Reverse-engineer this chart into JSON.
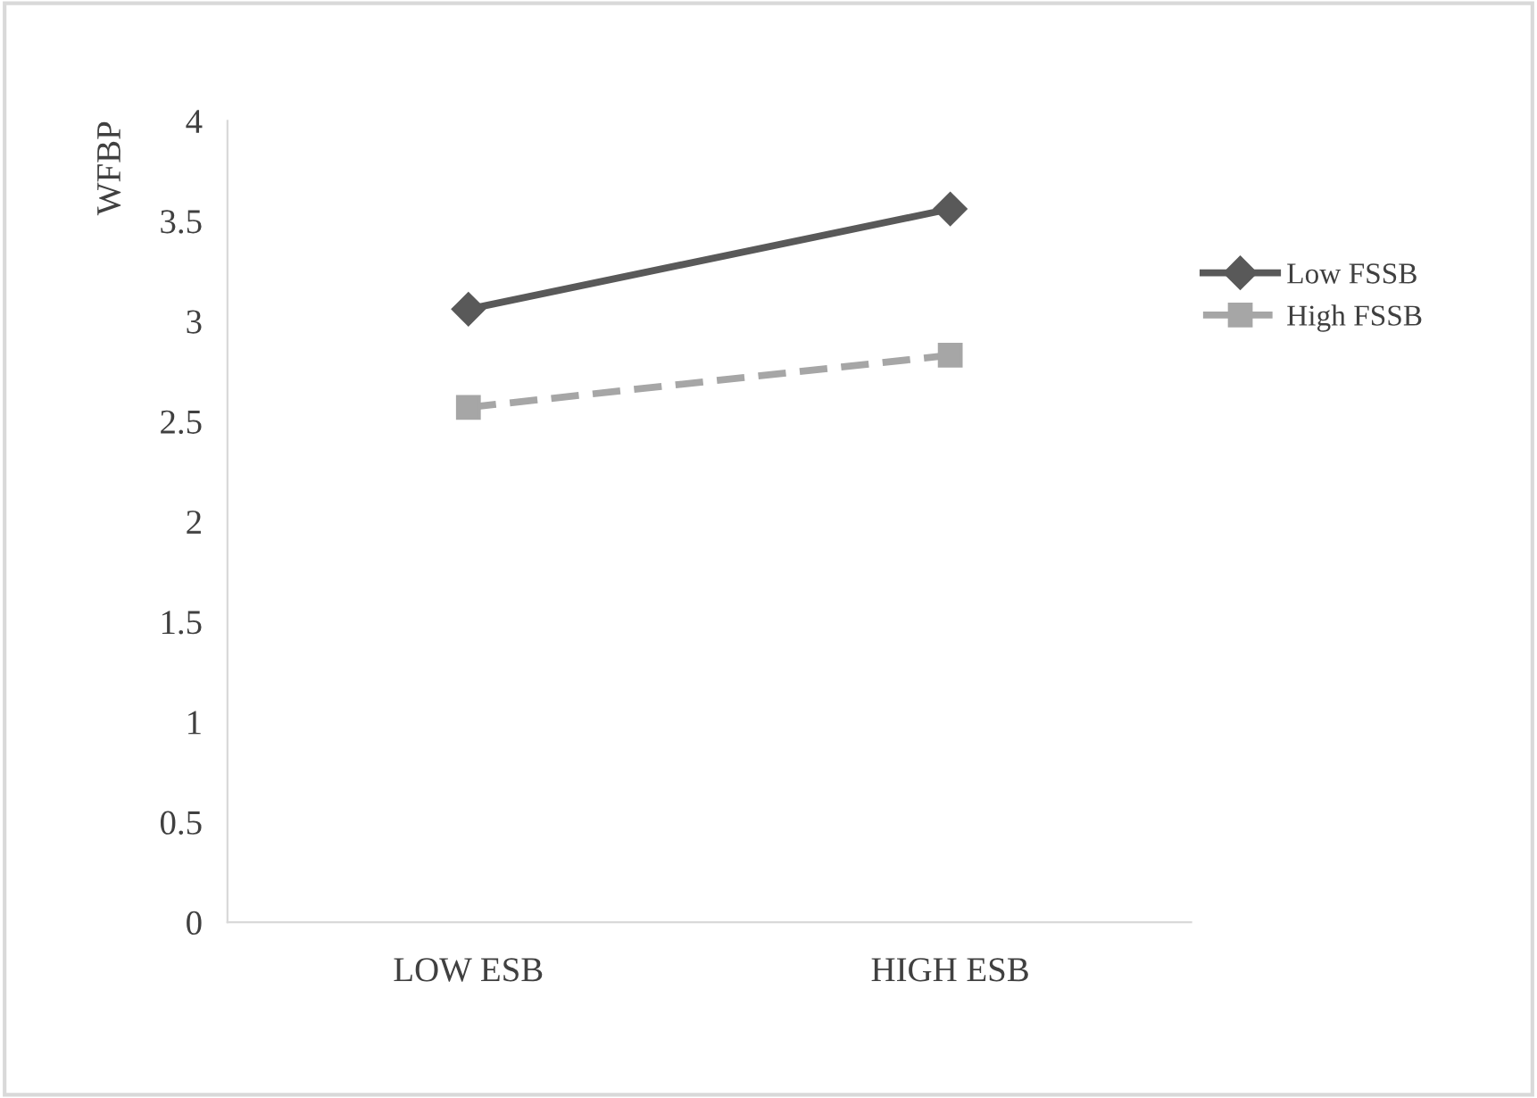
{
  "chart_data": {
    "type": "line",
    "ylabel": "WFBP",
    "categories": [
      "LOW ESB",
      "HIGH ESB"
    ],
    "series": [
      {
        "name": "Low FSSB",
        "color": "#595959",
        "values": [
          3.06,
          3.56
        ],
        "marker": "diamond",
        "line_style": "solid"
      },
      {
        "name": "High FSSB",
        "color": "#a6a6a6",
        "values": [
          2.57,
          2.83
        ],
        "marker": "square",
        "line_style": "dashed"
      }
    ],
    "ylim": [
      0,
      4
    ],
    "yticks": [
      0,
      {
        "value": 0.5,
        "label": "0.5"
      },
      1,
      {
        "value": 1.5,
        "label": "1.5"
      },
      2,
      {
        "value": 2.5,
        "label": "2.5"
      },
      3,
      {
        "value": 3.5,
        "label": "3.5"
      },
      4
    ],
    "grid": false,
    "legend": "right"
  }
}
